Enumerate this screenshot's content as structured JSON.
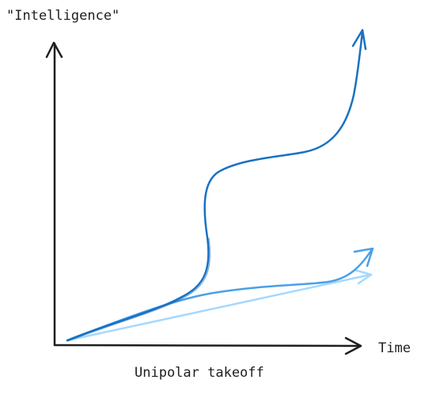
{
  "diagram": {
    "title": "Unipolar takeoff",
    "y_axis_label": "\"Intelligence\"",
    "x_axis_label": "Time",
    "colors": {
      "axis": "#1e1e1e",
      "leader_curve": "#1971c2",
      "middle_curve": "#4a9fe8",
      "lower_line": "#a5d8ff"
    },
    "curves": [
      {
        "role": "leading",
        "shape": "s-curve with sharp jump then exponential rise"
      },
      {
        "role": "middle",
        "shape": "gentle rise"
      },
      {
        "role": "lower",
        "shape": "straight linear rise"
      }
    ]
  }
}
